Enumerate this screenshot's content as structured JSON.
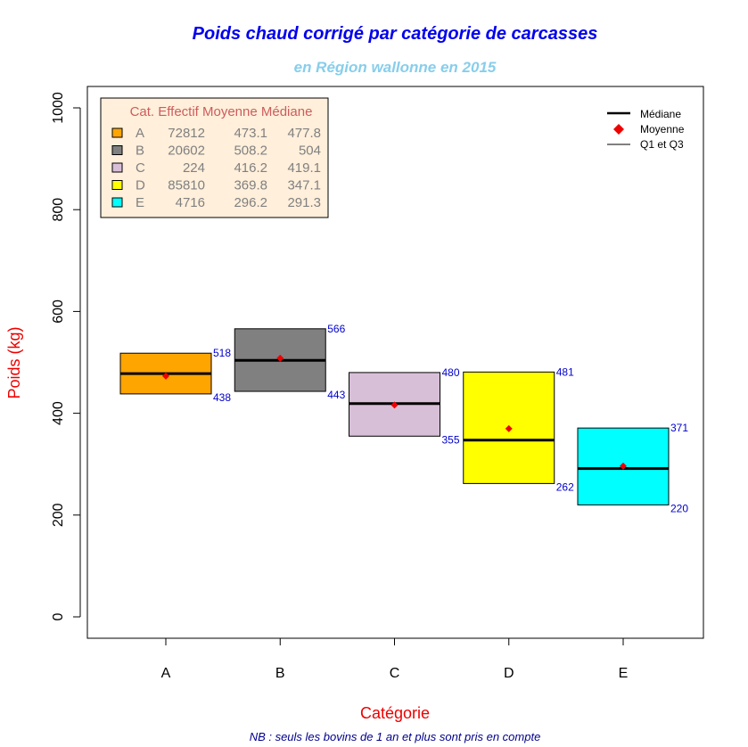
{
  "chart_data": {
    "type": "box",
    "title": "Poids chaud corrigé par catégorie de carcasses",
    "subtitle": "en Région wallonne en 2015",
    "xlabel": "Catégorie",
    "ylabel": "Poids (kg)",
    "footnote": "NB : seuls les bovins de 1 an et plus sont pris en compte",
    "ylim": [
      -40,
      1040
    ],
    "yticks": [
      0,
      200,
      400,
      600,
      800,
      1000
    ],
    "categories": [
      "A",
      "B",
      "C",
      "D",
      "E"
    ],
    "colors": [
      "#FFA500",
      "#808080",
      "#D8BFD8",
      "#FFFF00",
      "#00FFFF"
    ],
    "q1": [
      438,
      443,
      355,
      262,
      220
    ],
    "q3": [
      518,
      566,
      480,
      481,
      371
    ],
    "median": [
      477.8,
      504,
      419.1,
      347.1,
      291.3
    ],
    "mean": [
      473.1,
      508.2,
      416.2,
      369.8,
      296.2
    ],
    "count": [
      72812,
      20602,
      224,
      85810,
      4716
    ],
    "table_header": "Cat. Effectif Moyenne Médiane",
    "table_rows": [
      [
        "A",
        "72812",
        "473.1",
        "477.8"
      ],
      [
        "B",
        "20602",
        "508.2",
        "504"
      ],
      [
        "C",
        "224",
        "416.2",
        "419.1"
      ],
      [
        "D",
        "85810",
        "369.8",
        "347.1"
      ],
      [
        "E",
        "4716",
        "296.2",
        "291.3"
      ]
    ],
    "legend": {
      "placement": "top-right",
      "items": [
        "Médiane",
        "Moyenne",
        "Q1 et Q3"
      ]
    }
  }
}
